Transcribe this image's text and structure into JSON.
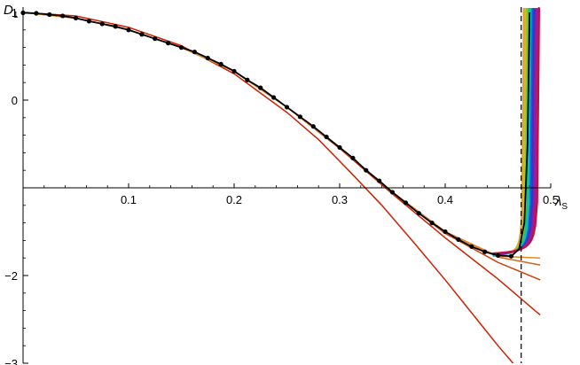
{
  "chart_data": {
    "type": "line",
    "title": "",
    "xlabel": "λS",
    "ylabel": "D1",
    "axis_labels": {
      "x": {
        "main": "λ",
        "sub": "S"
      },
      "y": {
        "main": "D",
        "sub": "1"
      }
    },
    "xlim": [
      0,
      0.5
    ],
    "ylim": [
      -3,
      1
    ],
    "x_ticks": [
      {
        "value": 0.1,
        "label": "0.1"
      },
      {
        "value": 0.2,
        "label": "0.2"
      },
      {
        "value": 0.3,
        "label": "0.3"
      },
      {
        "value": 0.4,
        "label": "0.4"
      },
      {
        "value": 0.5,
        "label": "0.5"
      }
    ],
    "y_ticks": [
      {
        "value": 1,
        "label": "1"
      },
      {
        "value": 0,
        "label": "0"
      },
      {
        "value": -2,
        "label": "−2"
      },
      {
        "value": -3,
        "label": "−3"
      }
    ],
    "x_axis_at_y": -1,
    "critical_line_x": 0.472,
    "colors": {
      "axis": "#000000",
      "dots": "#000000",
      "exact_line": "#000000",
      "red_series": "#cc2200",
      "dashed_line": "#000000"
    },
    "dots": {
      "x": [
        0,
        0.0125,
        0.025,
        0.0375,
        0.05,
        0.0625,
        0.075,
        0.0875,
        0.1,
        0.1125,
        0.125,
        0.1375,
        0.15,
        0.1625,
        0.175,
        0.1875,
        0.2,
        0.2125,
        0.225,
        0.2375,
        0.25,
        0.2625,
        0.275,
        0.2875,
        0.3,
        0.3125,
        0.325,
        0.3375,
        0.35,
        0.3625,
        0.375,
        0.3875,
        0.4,
        0.4125,
        0.425,
        0.4375,
        0.45,
        0.4625
      ],
      "y": [
        0.995,
        0.99,
        0.975,
        0.96,
        0.935,
        0.9,
        0.87,
        0.84,
        0.8,
        0.75,
        0.7,
        0.65,
        0.6,
        0.55,
        0.48,
        0.41,
        0.33,
        0.23,
        0.14,
        0.03,
        -0.08,
        -0.19,
        -0.3,
        -0.42,
        -0.54,
        -0.66,
        -0.8,
        -0.92,
        -1.05,
        -1.17,
        -1.29,
        -1.4,
        -1.5,
        -1.59,
        -1.67,
        -1.73,
        -1.77,
        -1.78
      ]
    },
    "exact_curve": {
      "x": [
        0,
        0.0125,
        0.025,
        0.0375,
        0.05,
        0.0625,
        0.075,
        0.0875,
        0.1,
        0.1125,
        0.125,
        0.1375,
        0.15,
        0.1625,
        0.175,
        0.1875,
        0.2,
        0.2125,
        0.225,
        0.2375,
        0.25,
        0.2625,
        0.275,
        0.2875,
        0.3,
        0.3125,
        0.325,
        0.3375,
        0.35,
        0.3625,
        0.375,
        0.3875,
        0.4,
        0.4125,
        0.425,
        0.4375,
        0.45,
        0.4625,
        0.47,
        0.475,
        0.478,
        0.48
      ],
      "y": [
        0.995,
        0.99,
        0.975,
        0.96,
        0.935,
        0.9,
        0.87,
        0.84,
        0.8,
        0.75,
        0.7,
        0.65,
        0.6,
        0.55,
        0.48,
        0.41,
        0.33,
        0.23,
        0.14,
        0.03,
        -0.08,
        -0.19,
        -0.3,
        -0.42,
        -0.54,
        -0.66,
        -0.8,
        -0.92,
        -1.05,
        -1.17,
        -1.29,
        -1.4,
        -1.5,
        -1.59,
        -1.67,
        -1.73,
        -1.77,
        -1.78,
        -1.7,
        -1.4,
        -0.5,
        1.0
      ]
    },
    "series": [
      {
        "color": "#cc2200",
        "x": [
          0,
          0.05,
          0.1,
          0.15,
          0.2,
          0.25,
          0.28,
          0.31,
          0.34,
          0.37,
          0.4,
          0.43,
          0.45,
          0.47
        ],
        "y": [
          1.0,
          0.96,
          0.83,
          0.62,
          0.3,
          -0.14,
          -0.45,
          -0.82,
          -1.2,
          -1.62,
          -2.05,
          -2.5,
          -2.8,
          -3.08
        ]
      },
      {
        "color": "#cc2200",
        "x": [
          0,
          0.05,
          0.1,
          0.15,
          0.2,
          0.25,
          0.3,
          0.35,
          0.4,
          0.45,
          0.49
        ],
        "y": [
          1.0,
          0.935,
          0.8,
          0.6,
          0.33,
          -0.08,
          -0.55,
          -1.07,
          -1.57,
          -2.04,
          -2.45
        ]
      },
      {
        "color": "#d04010",
        "x": [
          0,
          0.05,
          0.1,
          0.15,
          0.2,
          0.25,
          0.3,
          0.35,
          0.4,
          0.45,
          0.49
        ],
        "y": [
          1.0,
          0.935,
          0.8,
          0.6,
          0.33,
          -0.08,
          -0.54,
          -1.06,
          -1.52,
          -1.85,
          -2.05
        ]
      },
      {
        "color": "#d86020",
        "x": [
          0,
          0.05,
          0.1,
          0.15,
          0.2,
          0.25,
          0.3,
          0.35,
          0.4,
          0.45,
          0.49
        ],
        "y": [
          1.0,
          0.935,
          0.8,
          0.6,
          0.33,
          -0.08,
          -0.54,
          -1.05,
          -1.5,
          -1.79,
          -1.88
        ]
      },
      {
        "color": "#e08a20",
        "x": [
          0,
          0.05,
          0.1,
          0.15,
          0.2,
          0.25,
          0.3,
          0.35,
          0.4,
          0.45,
          0.49
        ],
        "y": [
          1.0,
          0.935,
          0.8,
          0.6,
          0.33,
          -0.08,
          -0.54,
          -1.05,
          -1.5,
          -1.78,
          -1.8
        ]
      }
    ],
    "divergent_band": {
      "x_start": 0.47,
      "x_end": 0.485,
      "colors": [
        "#e0a030",
        "#c8c020",
        "#80c830",
        "#20c070",
        "#10b8c8",
        "#1060d8",
        "#4030c8",
        "#8020b0",
        "#b01880",
        "#c01040"
      ]
    }
  }
}
